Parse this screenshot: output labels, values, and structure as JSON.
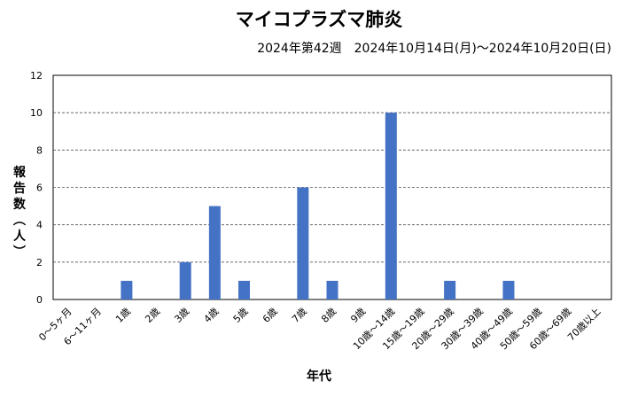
{
  "chart_data": {
    "type": "bar",
    "title": "マイコプラズマ肺炎",
    "subtitle": "2024年第42週　2024年10月14日(月)～2024年10月20日(日)",
    "ylabel": "報告数（人）",
    "xlabel": "年代",
    "categories": [
      "0～5ヶ月",
      "6～11ヶ月",
      "1歳",
      "2歳",
      "3歳",
      "4歳",
      "5歳",
      "6歳",
      "7歳",
      "8歳",
      "9歳",
      "10歳～14歳",
      "15歳～19歳",
      "20歳～29歳",
      "30歳～39歳",
      "40歳～49歳",
      "50歳～59歳",
      "60歳～69歳",
      "70歳以上"
    ],
    "values": [
      0,
      0,
      1,
      0,
      2,
      5,
      1,
      0,
      6,
      1,
      0,
      10,
      0,
      1,
      0,
      1,
      0,
      0,
      0
    ],
    "ylim": [
      0,
      12
    ],
    "yticks": [
      0,
      2,
      4,
      6,
      8,
      10,
      12
    ],
    "grid": true,
    "bar_color": "#4472C4"
  }
}
